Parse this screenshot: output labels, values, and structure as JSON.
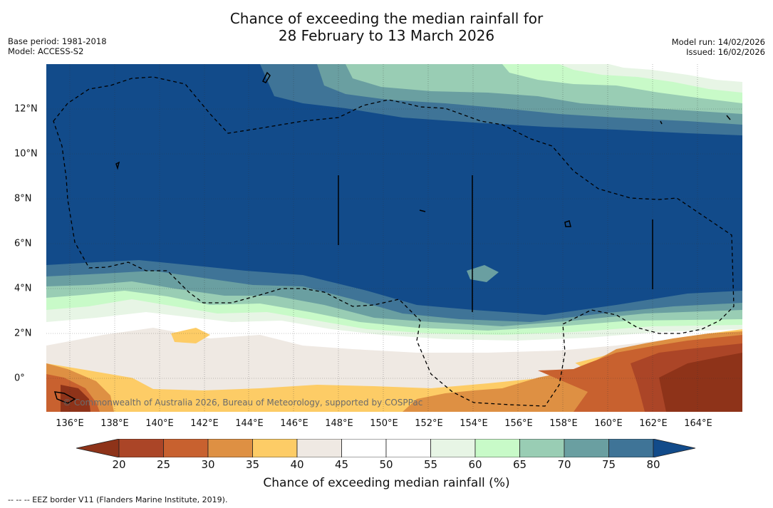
{
  "title": {
    "line1": "Chance of exceeding the median rainfall for",
    "line2": "28 February to 13 March 2026"
  },
  "meta": {
    "base_period": "Base period: 1981-2018",
    "model": "Model: ACCESS-S2",
    "model_run": "Model run: 14/02/2026",
    "issued": "Issued: 16/02/2026"
  },
  "axes": {
    "lon_labels": [
      "136°E",
      "138°E",
      "140°E",
      "142°E",
      "144°E",
      "146°E",
      "148°E",
      "150°E",
      "152°E",
      "154°E",
      "156°E",
      "158°E",
      "160°E",
      "162°E",
      "164°E"
    ],
    "lat_labels": [
      "12°N",
      "10°N",
      "8°N",
      "6°N",
      "4°N",
      "2°N",
      "0°"
    ]
  },
  "copyright": "© Commonwealth of Australia 2026, Bureau of Meteorology, supported by COSPPac",
  "colorbar": {
    "ticks": [
      "20",
      "25",
      "30",
      "35",
      "40",
      "45",
      "50",
      "55",
      "60",
      "65",
      "70",
      "75",
      "80"
    ],
    "colors": [
      "#8e3319",
      "#ab4527",
      "#c8612f",
      "#de9043",
      "#fdcc66",
      "#efe9e3",
      "#ffffff",
      "#ffffff",
      "#e7f5e5",
      "#c8fac8",
      "#99cdb4",
      "#6a9fa1",
      "#3f7497",
      "#124b8a"
    ],
    "label": "Chance of exceeding median rainfall (%)"
  },
  "legend_note": "--  --  -- EEZ border V11 (Flanders Marine Institute, 2019)."
}
